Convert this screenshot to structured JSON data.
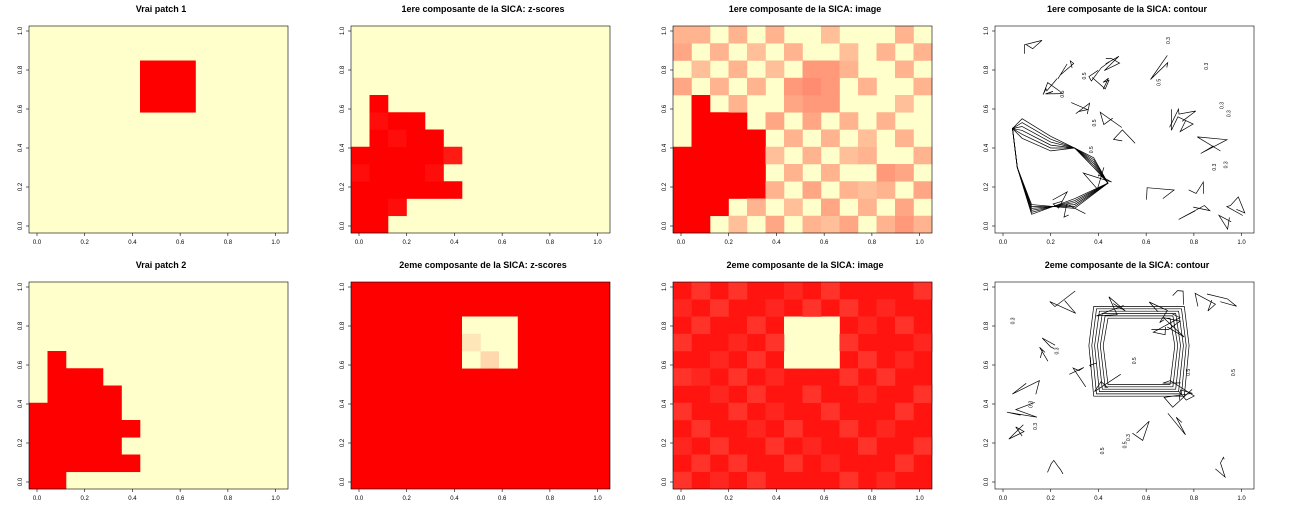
{
  "colors": {
    "red": "#ff0000",
    "bg": "#ffffcc",
    "low": "#ffffcc",
    "high": "#ff0000",
    "contour": "#000000"
  },
  "chart_data": [
    {
      "type": "heatmap",
      "title": "Vrai patch 1",
      "xticks": [
        "0.0",
        "0.2",
        "0.4",
        "0.6",
        "0.8",
        "1.0"
      ],
      "yticks": [
        "0.0",
        "0.2",
        "0.4",
        "0.6",
        "0.8",
        "1.0"
      ],
      "xlim": [
        0,
        1
      ],
      "ylim": [
        0,
        1
      ],
      "cols": 14,
      "rows": 12,
      "cells": [
        [
          6,
          7,
          1
        ],
        [
          7,
          7,
          1
        ],
        [
          8,
          7,
          1
        ],
        [
          6,
          8,
          1
        ],
        [
          7,
          8,
          1
        ],
        [
          8,
          8,
          1
        ],
        [
          6,
          9,
          1
        ],
        [
          7,
          9,
          1
        ],
        [
          8,
          9,
          1
        ]
      ]
    },
    {
      "type": "heatmap",
      "title": "1ere composante de la SICA: z-scores",
      "xticks": [
        "0.0",
        "0.2",
        "0.4",
        "0.6",
        "0.8",
        "1.0"
      ],
      "yticks": [
        "0.0",
        "0.2",
        "0.4",
        "0.6",
        "0.8",
        "1.0"
      ],
      "xlim": [
        0,
        1
      ],
      "ylim": [
        0,
        1
      ],
      "cols": 14,
      "rows": 12,
      "cells": [
        [
          0,
          0,
          1
        ],
        [
          1,
          0,
          1
        ],
        [
          0,
          1,
          1
        ],
        [
          1,
          1,
          1
        ],
        [
          2,
          1,
          0.95
        ],
        [
          0,
          2,
          1
        ],
        [
          1,
          2,
          1
        ],
        [
          2,
          2,
          1
        ],
        [
          3,
          2,
          1
        ],
        [
          4,
          2,
          1
        ],
        [
          5,
          2,
          1
        ],
        [
          0,
          3,
          0.95
        ],
        [
          1,
          3,
          1
        ],
        [
          2,
          3,
          1
        ],
        [
          3,
          3,
          1
        ],
        [
          4,
          3,
          0.95
        ],
        [
          0,
          4,
          1
        ],
        [
          1,
          4,
          1
        ],
        [
          2,
          4,
          1
        ],
        [
          3,
          4,
          1
        ],
        [
          4,
          4,
          1
        ],
        [
          5,
          4,
          0.9
        ],
        [
          1,
          5,
          1
        ],
        [
          2,
          5,
          0.95
        ],
        [
          3,
          5,
          1
        ],
        [
          4,
          5,
          1
        ],
        [
          1,
          6,
          0.95
        ],
        [
          2,
          6,
          1
        ],
        [
          3,
          6,
          1
        ],
        [
          1,
          7,
          1
        ]
      ]
    },
    {
      "type": "heatmap",
      "title": "1ere composante de la SICA: image",
      "xticks": [
        "0.0",
        "0.2",
        "0.4",
        "0.6",
        "0.8",
        "1.0"
      ],
      "yticks": [
        "0.0",
        "0.2",
        "0.4",
        "0.6",
        "0.8",
        "1.0"
      ],
      "xlim": [
        0,
        1
      ],
      "ylim": [
        0,
        1
      ],
      "cols": 14,
      "rows": 12,
      "cells": [
        [
          0,
          0,
          1
        ],
        [
          1,
          0,
          1
        ],
        [
          0,
          1,
          1
        ],
        [
          1,
          1,
          1
        ],
        [
          2,
          1,
          1
        ],
        [
          0,
          2,
          1
        ],
        [
          1,
          2,
          1
        ],
        [
          2,
          2,
          1
        ],
        [
          3,
          2,
          1
        ],
        [
          4,
          2,
          1
        ],
        [
          0,
          3,
          1
        ],
        [
          1,
          3,
          1
        ],
        [
          2,
          3,
          1
        ],
        [
          3,
          3,
          1
        ],
        [
          4,
          3,
          1
        ],
        [
          0,
          4,
          1
        ],
        [
          1,
          4,
          1
        ],
        [
          2,
          4,
          1
        ],
        [
          3,
          4,
          1
        ],
        [
          4,
          4,
          1
        ],
        [
          1,
          5,
          1
        ],
        [
          2,
          5,
          1
        ],
        [
          3,
          5,
          1
        ],
        [
          4,
          5,
          1
        ],
        [
          1,
          6,
          1
        ],
        [
          2,
          6,
          1
        ],
        [
          3,
          6,
          1
        ],
        [
          1,
          7,
          1
        ],
        [
          3,
          0,
          0.25
        ],
        [
          5,
          0,
          0.35
        ],
        [
          7,
          0,
          0.3
        ],
        [
          8,
          0,
          0.25
        ],
        [
          9,
          0,
          0.35
        ],
        [
          11,
          0,
          0.3
        ],
        [
          12,
          0,
          0.4
        ],
        [
          13,
          0,
          0.3
        ],
        [
          4,
          1,
          0.3
        ],
        [
          6,
          1,
          0.25
        ],
        [
          8,
          1,
          0.35
        ],
        [
          10,
          1,
          0.3
        ],
        [
          12,
          1,
          0.35
        ],
        [
          5,
          2,
          0.3
        ],
        [
          7,
          2,
          0.35
        ],
        [
          9,
          2,
          0.3
        ],
        [
          10,
          2,
          0.25
        ],
        [
          11,
          2,
          0.3
        ],
        [
          13,
          2,
          0.35
        ],
        [
          6,
          3,
          0.3
        ],
        [
          8,
          3,
          0.3
        ],
        [
          11,
          3,
          0.4
        ],
        [
          12,
          3,
          0.35
        ],
        [
          5,
          4,
          0.25
        ],
        [
          7,
          4,
          0.3
        ],
        [
          9,
          4,
          0.25
        ],
        [
          10,
          4,
          0.3
        ],
        [
          13,
          4,
          0.3
        ],
        [
          6,
          5,
          0.3
        ],
        [
          8,
          5,
          0.3
        ],
        [
          10,
          5,
          0.25
        ],
        [
          12,
          5,
          0.3
        ],
        [
          5,
          6,
          0.35
        ],
        [
          7,
          6,
          0.35
        ],
        [
          9,
          6,
          0.3
        ],
        [
          11,
          6,
          0.3
        ],
        [
          3,
          7,
          0.3
        ],
        [
          6,
          7,
          0.35
        ],
        [
          7,
          7,
          0.4
        ],
        [
          8,
          7,
          0.4
        ],
        [
          12,
          7,
          0.25
        ],
        [
          0,
          8,
          0.35
        ],
        [
          2,
          8,
          0.3
        ],
        [
          4,
          8,
          0.3
        ],
        [
          6,
          8,
          0.4
        ],
        [
          7,
          8,
          0.45
        ],
        [
          8,
          8,
          0.4
        ],
        [
          10,
          8,
          0.3
        ],
        [
          13,
          8,
          0.3
        ],
        [
          1,
          9,
          0.25
        ],
        [
          3,
          9,
          0.3
        ],
        [
          5,
          9,
          0.25
        ],
        [
          7,
          9,
          0.4
        ],
        [
          8,
          9,
          0.4
        ],
        [
          9,
          9,
          0.3
        ],
        [
          12,
          9,
          0.3
        ],
        [
          0,
          10,
          0.35
        ],
        [
          2,
          10,
          0.3
        ],
        [
          4,
          10,
          0.25
        ],
        [
          6,
          10,
          0.3
        ],
        [
          9,
          10,
          0.25
        ],
        [
          11,
          10,
          0.3
        ],
        [
          13,
          10,
          0.3
        ],
        [
          0,
          11,
          0.3
        ],
        [
          1,
          11,
          0.3
        ],
        [
          3,
          11,
          0.3
        ],
        [
          5,
          11,
          0.3
        ],
        [
          8,
          11,
          0.25
        ],
        [
          12,
          11,
          0.3
        ]
      ]
    },
    {
      "type": "contour",
      "title": "1ere composante de la SICA: contour",
      "xticks": [
        "0.0",
        "0.2",
        "0.4",
        "0.6",
        "0.8",
        "1.0"
      ],
      "yticks": [
        "0.0",
        "0.2",
        "0.4",
        "0.6",
        "0.8",
        "1.0"
      ],
      "xlim": [
        0,
        1
      ],
      "ylim": [
        0,
        1
      ],
      "labels": [
        "0.5",
        "0.3",
        "0.5",
        "0.3",
        "0.5",
        "0.3",
        "0.5",
        "0.3",
        "0.3",
        "0.3",
        "0.5"
      ]
    },
    {
      "type": "heatmap",
      "title": "Vrai patch 2",
      "xticks": [
        "0.0",
        "0.2",
        "0.4",
        "0.6",
        "0.8",
        "1.0"
      ],
      "yticks": [
        "0.0",
        "0.2",
        "0.4",
        "0.6",
        "0.8",
        "1.0"
      ],
      "xlim": [
        0,
        1
      ],
      "ylim": [
        0,
        1
      ],
      "cols": 14,
      "rows": 12,
      "cells": [
        [
          0,
          0,
          1
        ],
        [
          1,
          0,
          1
        ],
        [
          0,
          1,
          1
        ],
        [
          1,
          1,
          1
        ],
        [
          2,
          1,
          1
        ],
        [
          3,
          1,
          1
        ],
        [
          4,
          1,
          1
        ],
        [
          5,
          1,
          1
        ],
        [
          0,
          2,
          1
        ],
        [
          1,
          2,
          1
        ],
        [
          2,
          2,
          1
        ],
        [
          3,
          2,
          1
        ],
        [
          4,
          2,
          1
        ],
        [
          0,
          3,
          1
        ],
        [
          1,
          3,
          1
        ],
        [
          2,
          3,
          1
        ],
        [
          3,
          3,
          1
        ],
        [
          4,
          3,
          1
        ],
        [
          5,
          3,
          1
        ],
        [
          0,
          4,
          1
        ],
        [
          1,
          4,
          1
        ],
        [
          2,
          4,
          1
        ],
        [
          3,
          4,
          1
        ],
        [
          4,
          4,
          1
        ],
        [
          1,
          5,
          1
        ],
        [
          2,
          5,
          1
        ],
        [
          3,
          5,
          1
        ],
        [
          4,
          5,
          1
        ],
        [
          1,
          6,
          1
        ],
        [
          2,
          6,
          1
        ],
        [
          3,
          6,
          1
        ],
        [
          1,
          7,
          1
        ]
      ]
    },
    {
      "type": "heatmap",
      "title": "2eme composante de la SICA: z-scores",
      "xticks": [
        "0.0",
        "0.2",
        "0.4",
        "0.6",
        "0.8",
        "1.0"
      ],
      "yticks": [
        "0.0",
        "0.2",
        "0.4",
        "0.6",
        "0.8",
        "1.0"
      ],
      "xlim": [
        0,
        1
      ],
      "ylim": [
        0,
        1
      ],
      "cols": 14,
      "rows": 12,
      "fill": 1,
      "cells": [
        [
          6,
          7,
          0
        ],
        [
          7,
          7,
          0.15
        ],
        [
          8,
          7,
          0
        ],
        [
          6,
          8,
          0
        ],
        [
          7,
          8,
          0
        ],
        [
          8,
          8,
          0
        ],
        [
          6,
          9,
          0
        ],
        [
          7,
          9,
          0
        ],
        [
          8,
          9,
          0
        ],
        [
          6,
          8,
          0.1
        ]
      ]
    },
    {
      "type": "heatmap",
      "title": "2eme composante de la SICA: image",
      "xticks": [
        "0.0",
        "0.2",
        "0.4",
        "0.6",
        "0.8",
        "1.0"
      ],
      "yticks": [
        "0.0",
        "0.2",
        "0.4",
        "0.6",
        "0.8",
        "1.0"
      ],
      "xlim": [
        0,
        1
      ],
      "ylim": [
        0,
        1
      ],
      "cols": 14,
      "rows": 12,
      "fill": 0.92,
      "cells": [
        [
          6,
          7,
          0
        ],
        [
          7,
          7,
          0
        ],
        [
          8,
          7,
          0
        ],
        [
          6,
          8,
          0
        ],
        [
          7,
          8,
          0
        ],
        [
          8,
          8,
          0
        ],
        [
          6,
          9,
          0
        ],
        [
          7,
          9,
          0
        ],
        [
          8,
          9,
          0
        ],
        [
          0,
          0,
          0.8
        ],
        [
          2,
          0,
          0.85
        ],
        [
          4,
          0,
          0.8
        ],
        [
          9,
          0,
          0.8
        ],
        [
          11,
          0,
          0.85
        ],
        [
          1,
          1,
          0.8
        ],
        [
          3,
          1,
          0.8
        ],
        [
          6,
          1,
          0.8
        ],
        [
          8,
          1,
          0.85
        ],
        [
          12,
          1,
          0.8
        ],
        [
          0,
          2,
          0.85
        ],
        [
          2,
          2,
          0.8
        ],
        [
          5,
          2,
          0.8
        ],
        [
          7,
          2,
          0.85
        ],
        [
          10,
          2,
          0.8
        ],
        [
          13,
          2,
          0.8
        ],
        [
          1,
          3,
          0.8
        ],
        [
          4,
          3,
          0.85
        ],
        [
          6,
          3,
          0.8
        ],
        [
          9,
          3,
          0.8
        ],
        [
          11,
          3,
          0.85
        ],
        [
          0,
          4,
          0.8
        ],
        [
          3,
          4,
          0.8
        ],
        [
          5,
          4,
          0.85
        ],
        [
          8,
          4,
          0.8
        ],
        [
          12,
          4,
          0.8
        ],
        [
          2,
          5,
          0.85
        ],
        [
          4,
          5,
          0.8
        ],
        [
          7,
          5,
          0.8
        ],
        [
          10,
          5,
          0.85
        ],
        [
          13,
          5,
          0.8
        ],
        [
          0,
          6,
          0.8
        ],
        [
          1,
          6,
          0.85
        ],
        [
          3,
          6,
          0.8
        ],
        [
          5,
          6,
          0.85
        ],
        [
          9,
          6,
          0.8
        ],
        [
          11,
          6,
          0.8
        ],
        [
          2,
          7,
          0.85
        ],
        [
          4,
          7,
          0.8
        ],
        [
          10,
          7,
          0.8
        ],
        [
          12,
          7,
          0.85
        ],
        [
          0,
          8,
          0.8
        ],
        [
          3,
          8,
          0.85
        ],
        [
          5,
          8,
          0.8
        ],
        [
          9,
          8,
          0.8
        ],
        [
          13,
          8,
          0.85
        ],
        [
          1,
          9,
          0.8
        ],
        [
          4,
          9,
          0.8
        ],
        [
          10,
          9,
          0.85
        ],
        [
          12,
          9,
          0.8
        ],
        [
          0,
          10,
          0.85
        ],
        [
          2,
          10,
          0.8
        ],
        [
          5,
          10,
          0.85
        ],
        [
          7,
          10,
          0.8
        ],
        [
          9,
          10,
          0.8
        ],
        [
          11,
          10,
          0.85
        ],
        [
          1,
          11,
          0.8
        ],
        [
          3,
          11,
          0.8
        ],
        [
          6,
          11,
          0.85
        ],
        [
          8,
          11,
          0.8
        ],
        [
          13,
          11,
          0.8
        ]
      ]
    },
    {
      "type": "contour",
      "title": "2eme composante de la SICA: contour",
      "xticks": [
        "0.0",
        "0.2",
        "0.4",
        "0.6",
        "0.8",
        "1.0"
      ],
      "yticks": [
        "0.0",
        "0.2",
        "0.4",
        "0.6",
        "0.8",
        "1.0"
      ],
      "xlim": [
        0,
        1
      ],
      "ylim": [
        0,
        1
      ],
      "labels": [
        "0.5",
        "0.3",
        "0.5",
        "0.3",
        "0.5",
        "0.3",
        "0.5",
        "0.3",
        "0.5",
        "0.3"
      ]
    }
  ]
}
